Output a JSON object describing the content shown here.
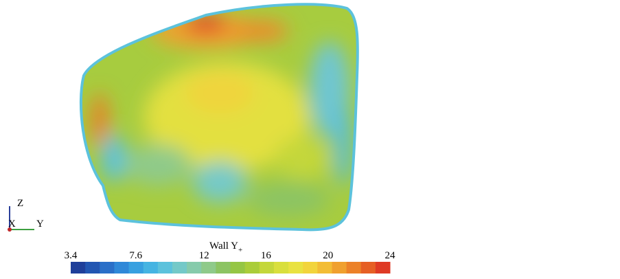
{
  "chart_data": {
    "type": "contour",
    "colorbar_label": "Wall Y",
    "colorbar_label_subscript": "+",
    "colorbar_lim": [
      3.4,
      24
    ],
    "colorbar_ticks": [
      3.4,
      7.6,
      12,
      16,
      20,
      24
    ],
    "colormap": [
      "#1f3f9a",
      "#2256b2",
      "#2a6fc8",
      "#2f88d8",
      "#37a0e0",
      "#45b4e2",
      "#5cc2dc",
      "#74c9c8",
      "#86cbab",
      "#8fca8a",
      "#8cc463",
      "#95c644",
      "#aacd3a",
      "#c4d73b",
      "#d9df3d",
      "#e9e241",
      "#f2d43c",
      "#f3bd35",
      "#f0a02e",
      "#ec8128",
      "#e65f24",
      "#df3a24"
    ],
    "axes_triad": {
      "labels": [
        "Z",
        "X",
        "Y"
      ]
    }
  }
}
